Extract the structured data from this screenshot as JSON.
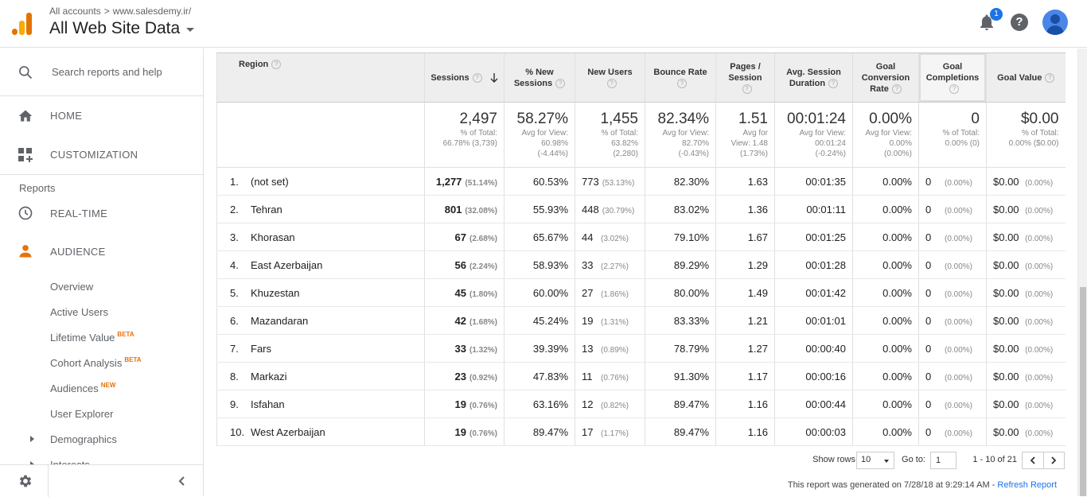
{
  "header": {
    "breadcrumb_all": "All accounts",
    "breadcrumb_site": "www.salesdemy.ir/",
    "view_title": "All Web Site Data",
    "notification_count": "1",
    "help_label": "?"
  },
  "sidebar": {
    "search_placeholder": "Search reports and help",
    "home": "HOME",
    "customization": "CUSTOMIZATION",
    "reports_label": "Reports",
    "realtime": "REAL-TIME",
    "audience": "AUDIENCE",
    "sub_items": [
      {
        "label": "Overview",
        "tag": ""
      },
      {
        "label": "Active Users",
        "tag": ""
      },
      {
        "label": "Lifetime Value",
        "tag": "BETA"
      },
      {
        "label": "Cohort Analysis",
        "tag": "BETA"
      },
      {
        "label": "Audiences",
        "tag": "NEW"
      },
      {
        "label": "User Explorer",
        "tag": ""
      },
      {
        "label": "Demographics",
        "tag": ""
      },
      {
        "label": "Interests",
        "tag": ""
      }
    ]
  },
  "table": {
    "headers": {
      "region": "Region",
      "sessions": "Sessions",
      "new_sessions_1": "% New",
      "new_sessions_2": "Sessions",
      "new_users": "New Users",
      "bounce_rate": "Bounce Rate",
      "pages_1": "Pages /",
      "pages_2": "Session",
      "duration_1": "Avg. Session",
      "duration_2": "Duration",
      "goal_conv_1": "Goal",
      "goal_conv_2": "Conversion",
      "goal_conv_3": "Rate",
      "goal_comp_1": "Goal",
      "goal_comp_2": "Completions",
      "goal_value": "Goal Value"
    },
    "totals": {
      "sessions": {
        "big": "2,497",
        "l1": "% of Total:",
        "l2": "66.78% (3,739)",
        "l3": ""
      },
      "new_sessions": {
        "big": "58.27%",
        "l1": "Avg for View:",
        "l2": "60.98%",
        "l3": "(-4.44%)"
      },
      "new_users": {
        "big": "1,455",
        "l1": "% of Total:",
        "l2": "63.82%",
        "l3": "(2,280)"
      },
      "bounce_rate": {
        "big": "82.34%",
        "l1": "Avg for View:",
        "l2": "82.70%",
        "l3": "(-0.43%)"
      },
      "pages": {
        "big": "1.51",
        "l1": "Avg for",
        "l2": "View: 1.48",
        "l3": "(1.73%)"
      },
      "duration": {
        "big": "00:01:24",
        "l1": "Avg for View:",
        "l2": "00:01:24",
        "l3": "(-0.24%)"
      },
      "goal_conv": {
        "big": "0.00%",
        "l1": "Avg for View:",
        "l2": "0.00%",
        "l3": "(0.00%)"
      },
      "goal_comp": {
        "big": "0",
        "l1": "% of Total:",
        "l2": "0.00% (0)",
        "l3": ""
      },
      "goal_value": {
        "big": "$0.00",
        "l1": "% of Total:",
        "l2": "0.00% ($0.00)",
        "l3": ""
      }
    },
    "rows": [
      {
        "idx": "1.",
        "region": "(not set)",
        "sessions": "1,277",
        "sessions_pct": "(51.14%)",
        "new_sessions": "60.53%",
        "new_users": "773",
        "new_users_pct": "(53.13%)",
        "bounce": "82.30%",
        "pages": "1.63",
        "duration": "00:01:35",
        "goal_conv": "0.00%",
        "goal_comp": "0",
        "goal_comp_pct": "(0.00%)",
        "goal_value": "$0.00",
        "goal_value_pct": "(0.00%)"
      },
      {
        "idx": "2.",
        "region": "Tehran",
        "sessions": "801",
        "sessions_pct": "(32.08%)",
        "new_sessions": "55.93%",
        "new_users": "448",
        "new_users_pct": "(30.79%)",
        "bounce": "83.02%",
        "pages": "1.36",
        "duration": "00:01:11",
        "goal_conv": "0.00%",
        "goal_comp": "0",
        "goal_comp_pct": "(0.00%)",
        "goal_value": "$0.00",
        "goal_value_pct": "(0.00%)"
      },
      {
        "idx": "3.",
        "region": "Khorasan",
        "sessions": "67",
        "sessions_pct": "(2.68%)",
        "new_sessions": "65.67%",
        "new_users": "44",
        "new_users_pct": "(3.02%)",
        "bounce": "79.10%",
        "pages": "1.67",
        "duration": "00:01:25",
        "goal_conv": "0.00%",
        "goal_comp": "0",
        "goal_comp_pct": "(0.00%)",
        "goal_value": "$0.00",
        "goal_value_pct": "(0.00%)"
      },
      {
        "idx": "4.",
        "region": "East Azerbaijan",
        "sessions": "56",
        "sessions_pct": "(2.24%)",
        "new_sessions": "58.93%",
        "new_users": "33",
        "new_users_pct": "(2.27%)",
        "bounce": "89.29%",
        "pages": "1.29",
        "duration": "00:01:28",
        "goal_conv": "0.00%",
        "goal_comp": "0",
        "goal_comp_pct": "(0.00%)",
        "goal_value": "$0.00",
        "goal_value_pct": "(0.00%)"
      },
      {
        "idx": "5.",
        "region": "Khuzestan",
        "sessions": "45",
        "sessions_pct": "(1.80%)",
        "new_sessions": "60.00%",
        "new_users": "27",
        "new_users_pct": "(1.86%)",
        "bounce": "80.00%",
        "pages": "1.49",
        "duration": "00:01:42",
        "goal_conv": "0.00%",
        "goal_comp": "0",
        "goal_comp_pct": "(0.00%)",
        "goal_value": "$0.00",
        "goal_value_pct": "(0.00%)"
      },
      {
        "idx": "6.",
        "region": "Mazandaran",
        "sessions": "42",
        "sessions_pct": "(1.68%)",
        "new_sessions": "45.24%",
        "new_users": "19",
        "new_users_pct": "(1.31%)",
        "bounce": "83.33%",
        "pages": "1.21",
        "duration": "00:01:01",
        "goal_conv": "0.00%",
        "goal_comp": "0",
        "goal_comp_pct": "(0.00%)",
        "goal_value": "$0.00",
        "goal_value_pct": "(0.00%)"
      },
      {
        "idx": "7.",
        "region": "Fars",
        "sessions": "33",
        "sessions_pct": "(1.32%)",
        "new_sessions": "39.39%",
        "new_users": "13",
        "new_users_pct": "(0.89%)",
        "bounce": "78.79%",
        "pages": "1.27",
        "duration": "00:00:40",
        "goal_conv": "0.00%",
        "goal_comp": "0",
        "goal_comp_pct": "(0.00%)",
        "goal_value": "$0.00",
        "goal_value_pct": "(0.00%)"
      },
      {
        "idx": "8.",
        "region": "Markazi",
        "sessions": "23",
        "sessions_pct": "(0.92%)",
        "new_sessions": "47.83%",
        "new_users": "11",
        "new_users_pct": "(0.76%)",
        "bounce": "91.30%",
        "pages": "1.17",
        "duration": "00:00:16",
        "goal_conv": "0.00%",
        "goal_comp": "0",
        "goal_comp_pct": "(0.00%)",
        "goal_value": "$0.00",
        "goal_value_pct": "(0.00%)"
      },
      {
        "idx": "9.",
        "region": "Isfahan",
        "sessions": "19",
        "sessions_pct": "(0.76%)",
        "new_sessions": "63.16%",
        "new_users": "12",
        "new_users_pct": "(0.82%)",
        "bounce": "89.47%",
        "pages": "1.16",
        "duration": "00:00:44",
        "goal_conv": "0.00%",
        "goal_comp": "0",
        "goal_comp_pct": "(0.00%)",
        "goal_value": "$0.00",
        "goal_value_pct": "(0.00%)"
      },
      {
        "idx": "10.",
        "region": "West Azerbaijan",
        "sessions": "19",
        "sessions_pct": "(0.76%)",
        "new_sessions": "89.47%",
        "new_users": "17",
        "new_users_pct": "(1.17%)",
        "bounce": "89.47%",
        "pages": "1.16",
        "duration": "00:00:03",
        "goal_conv": "0.00%",
        "goal_comp": "0",
        "goal_comp_pct": "(0.00%)",
        "goal_value": "$0.00",
        "goal_value_pct": "(0.00%)"
      }
    ]
  },
  "pager": {
    "show_rows_label": "Show rows:",
    "show_rows_value": "10",
    "goto_label": "Go to:",
    "goto_value": "1",
    "range": "1 - 10 of 21"
  },
  "footer": {
    "generated": "This report was generated on 7/28/18 at 9:29:14 AM - ",
    "refresh": "Refresh Report"
  },
  "colors": {
    "accent_orange": "#e8710a",
    "link_blue": "#1a73e8"
  }
}
